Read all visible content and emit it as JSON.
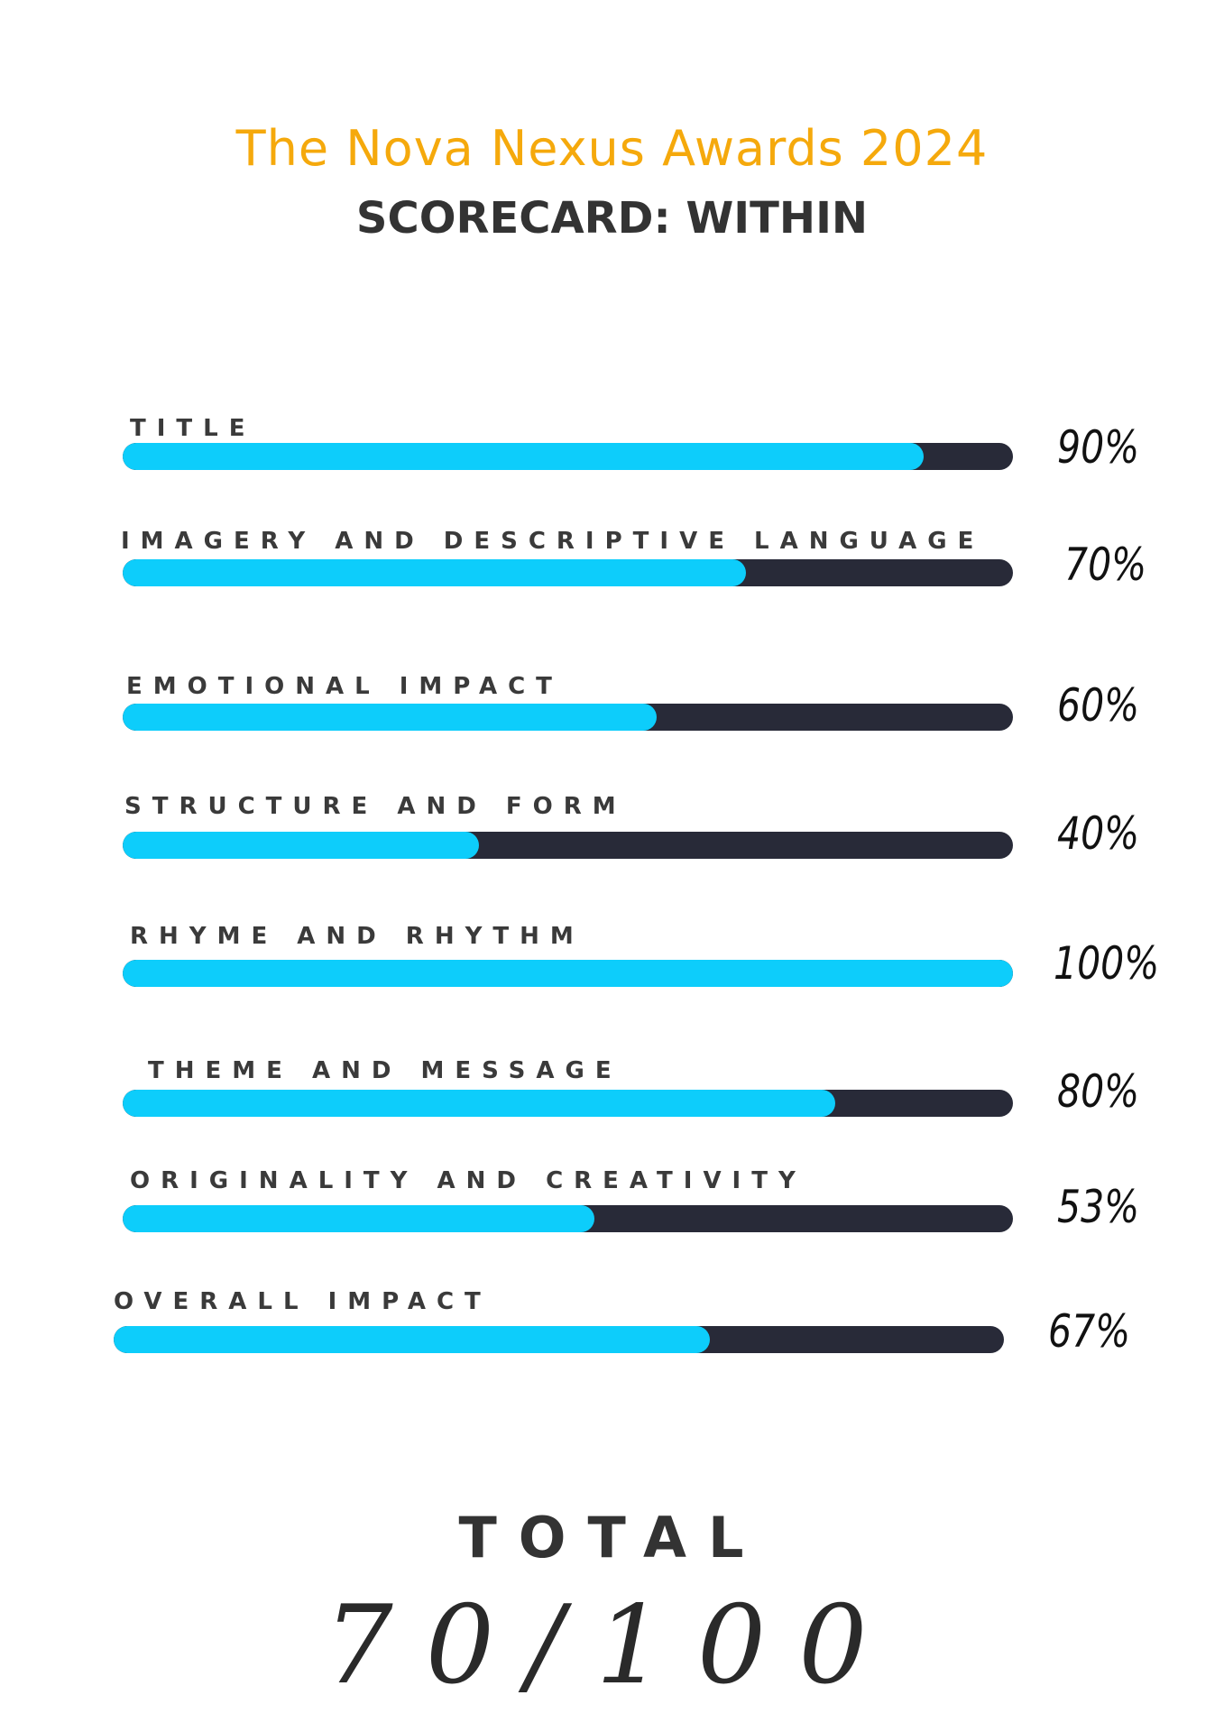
{
  "header": {
    "award_title": "The Nova Nexus Awards 2024",
    "scorecard_title": "SCORECARD: WITHIN"
  },
  "colors": {
    "title_accent": "#F5A90C",
    "bar_fill": "#0DCDFB",
    "bar_track": "#282A38",
    "text_dark": "#333333"
  },
  "scores": [
    {
      "label": "TITLE",
      "value_text": "90%",
      "value": 0.9
    },
    {
      "label": "IMAGERY AND DESCRIPTIVE LANGUAGE",
      "value_text": "70%",
      "value": 0.7
    },
    {
      "label": "EMOTIONAL IMPACT",
      "value_text": "60%",
      "value": 0.6
    },
    {
      "label": "STRUCTURE AND FORM",
      "value_text": "40%",
      "value": 0.4
    },
    {
      "label": "RHYME AND RHYTHM",
      "value_text": "100%",
      "value": 1.0
    },
    {
      "label": "THEME AND MESSAGE",
      "value_text": "80%",
      "value": 0.8
    },
    {
      "label": "ORIGINALITY AND CREATIVITY",
      "value_text": "53%",
      "value": 0.53
    },
    {
      "label": "OVERALL IMPACT",
      "value_text": "67%",
      "value": 0.67
    }
  ],
  "total": {
    "label": "TOTAL",
    "value_text": "70/100"
  }
}
